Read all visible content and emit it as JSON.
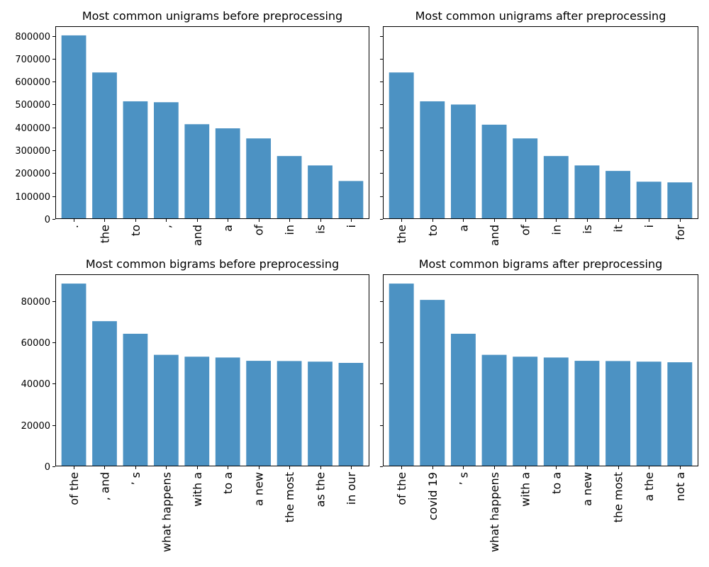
{
  "colors": {
    "bar": "#4c92c3",
    "axis": "#000000",
    "background": "#ffffff"
  },
  "chart_data": [
    {
      "type": "bar",
      "title": "Most common unigrams before preprocessing",
      "xlabel": "",
      "ylabel": "",
      "categories": [
        ".",
        "the",
        "to",
        ",",
        "and",
        "a",
        "of",
        "in",
        "is",
        "i"
      ],
      "values": [
        802000,
        640000,
        514000,
        510000,
        414000,
        396000,
        352000,
        275000,
        234000,
        166000
      ],
      "ylim": [
        0,
        842000
      ],
      "yticks": [
        0,
        100000,
        200000,
        300000,
        400000,
        500000,
        600000,
        700000,
        800000
      ],
      "ytick_labels": [
        "0",
        "100000",
        "200000",
        "300000",
        "400000",
        "500000",
        "600000",
        "700000",
        "800000"
      ],
      "grid": false
    },
    {
      "type": "bar",
      "title": "Most common unigrams after preprocessing",
      "xlabel": "",
      "ylabel": "",
      "categories": [
        "the",
        "to",
        "a",
        "and",
        "of",
        "in",
        "is",
        "it",
        "i",
        "for"
      ],
      "values": [
        640000,
        514000,
        500000,
        412000,
        352000,
        275000,
        234000,
        210000,
        163000,
        160000
      ],
      "ylim": [
        0,
        842000
      ],
      "yticks": [
        0,
        100000,
        200000,
        300000,
        400000,
        500000,
        600000,
        700000,
        800000
      ],
      "ytick_labels": [],
      "grid": false
    },
    {
      "type": "bar",
      "title": "Most common bigrams before preprocessing",
      "xlabel": "",
      "ylabel": "",
      "categories": [
        "of the",
        ", and",
        "’ s",
        "what happens",
        "with a",
        "to a",
        "a new",
        "the most",
        "as the",
        "in our"
      ],
      "values": [
        88500,
        70300,
        64200,
        54000,
        53100,
        52700,
        51100,
        51000,
        50700,
        50100
      ],
      "ylim": [
        0,
        93000
      ],
      "yticks": [
        0,
        20000,
        40000,
        60000,
        80000
      ],
      "ytick_labels": [
        "0",
        "20000",
        "40000",
        "60000",
        "80000"
      ],
      "grid": false
    },
    {
      "type": "bar",
      "title": "Most common bigrams after preprocessing",
      "xlabel": "",
      "ylabel": "",
      "categories": [
        "of the",
        "covid 19",
        "’ s",
        "what happens",
        "with a",
        "to a",
        "a new",
        "the most",
        "a the",
        "not a"
      ],
      "values": [
        88500,
        80600,
        64200,
        54000,
        53100,
        52700,
        51100,
        51000,
        50700,
        50400
      ],
      "ylim": [
        0,
        93000
      ],
      "yticks": [
        0,
        20000,
        40000,
        60000,
        80000
      ],
      "ytick_labels": [],
      "grid": false
    }
  ]
}
